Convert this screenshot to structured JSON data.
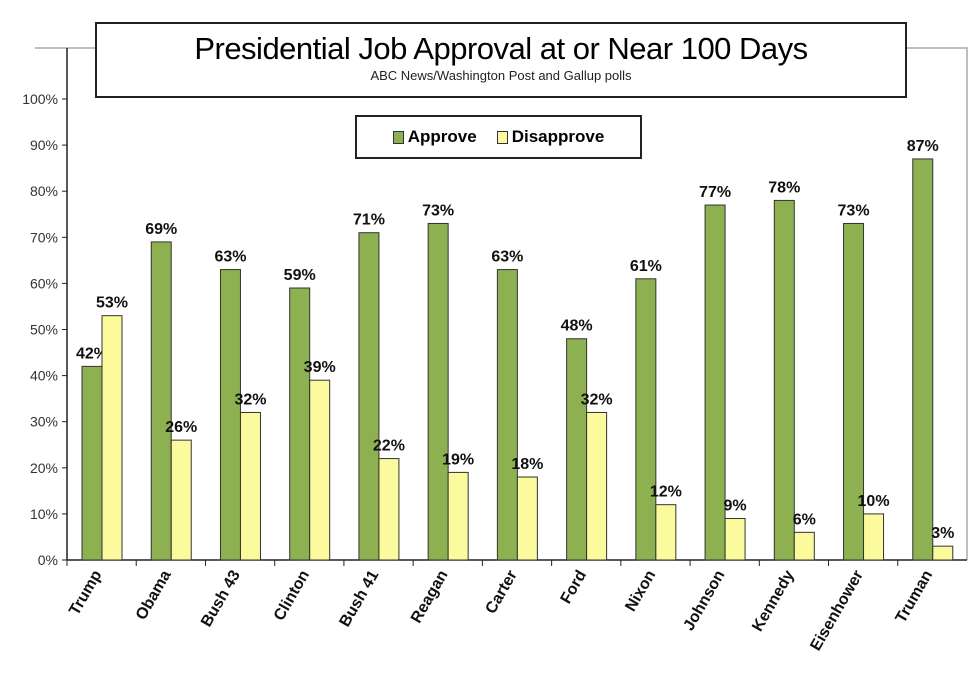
{
  "chart_data": {
    "type": "bar",
    "title": "Presidential Job Approval at or Near 100 Days",
    "subtitle": "ABC News/Washington  Post  and Gallup polls",
    "categories": [
      "Trump",
      "Obama",
      "Bush 43",
      "Clinton",
      "Bush 41",
      "Reagan",
      "Carter",
      "Ford",
      "Nixon",
      "Johnson",
      "Kennedy",
      "Eisenhower",
      "Truman"
    ],
    "series": [
      {
        "name": "Approve",
        "color": "#8db050",
        "values": [
          42,
          69,
          63,
          59,
          71,
          73,
          63,
          48,
          61,
          77,
          78,
          73,
          87
        ],
        "labels": [
          "42%",
          "69%",
          "63%",
          "59%",
          "71%",
          "73%",
          "63%",
          "48%",
          "61%",
          "77%",
          "78%",
          "73%",
          "87%"
        ]
      },
      {
        "name": "Disapprove",
        "color": "#fbfa9c",
        "values": [
          53,
          26,
          32,
          39,
          22,
          19,
          18,
          32,
          12,
          9,
          6,
          10,
          3
        ],
        "labels": [
          "53%",
          "26%",
          "32%",
          "39%",
          "22%",
          "19%",
          "18%",
          "32%",
          "12%",
          "9%",
          "6%",
          "10%",
          "3%"
        ]
      }
    ],
    "ylim": [
      0,
      100
    ],
    "yticks": [
      "0%",
      "10%",
      "20%",
      "30%",
      "40%",
      "50%",
      "60%",
      "70%",
      "80%",
      "90%",
      "100%"
    ],
    "grid": false,
    "legend_position": "top-center"
  }
}
